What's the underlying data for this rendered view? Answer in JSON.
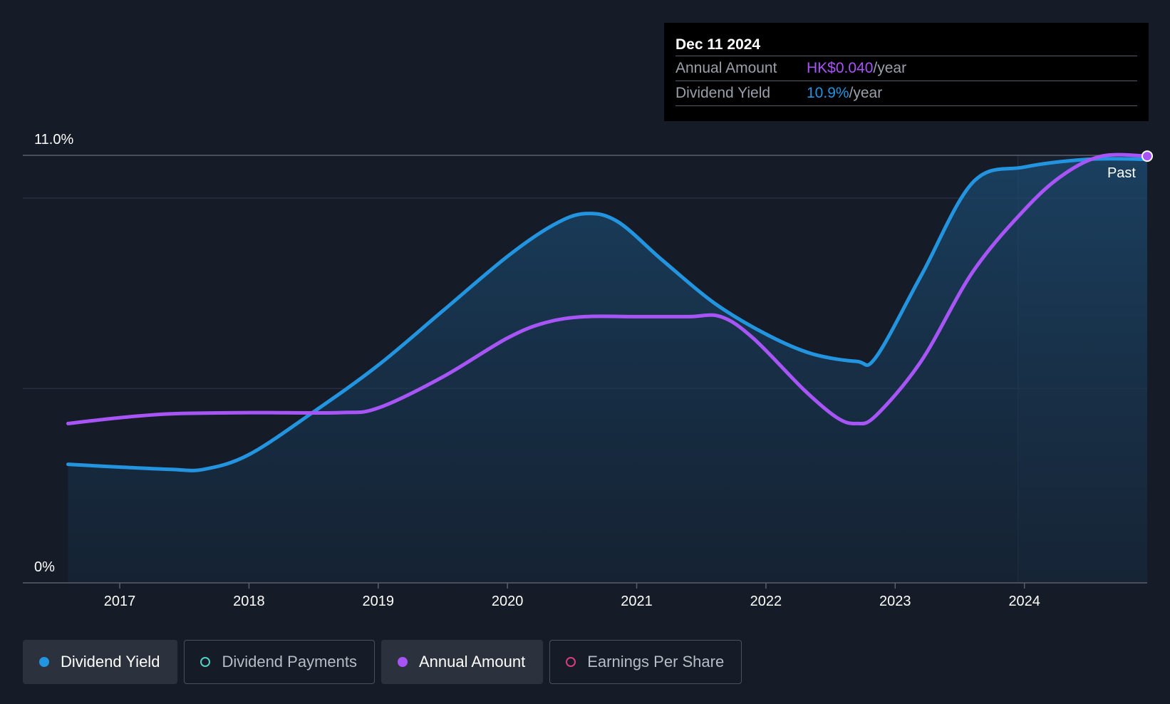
{
  "tooltip": {
    "date": "Dec 11 2024",
    "rows": [
      {
        "label": "Annual Amount",
        "value": "HK$0.040",
        "unit": "/year",
        "color": "#a855f7"
      },
      {
        "label": "Dividend Yield",
        "value": "10.9%",
        "unit": "/year",
        "color": "#2394df"
      }
    ]
  },
  "past_label": "Past",
  "legend": [
    {
      "label": "Dividend Yield",
      "color": "#2394df",
      "active": true
    },
    {
      "label": "Dividend Payments",
      "color": "#4fd1c5",
      "active": false
    },
    {
      "label": "Annual Amount",
      "color": "#a855f7",
      "active": true
    },
    {
      "label": "Earnings Per Share",
      "color": "#d6407a",
      "active": false
    }
  ],
  "chart_data": {
    "type": "line",
    "x_ticks": [
      "2017",
      "2018",
      "2019",
      "2020",
      "2021",
      "2022",
      "2023",
      "2024"
    ],
    "y_ticks": [
      "0%",
      "11.0%"
    ],
    "ylim": [
      0,
      11.0
    ],
    "xlim": [
      2016.25,
      2024.95
    ],
    "past_start": 2023.95,
    "series": [
      {
        "name": "Dividend Yield",
        "color": "#2394df",
        "area": true,
        "points": [
          [
            2016.6,
            3.05
          ],
          [
            2017.0,
            2.98
          ],
          [
            2017.4,
            2.92
          ],
          [
            2017.65,
            2.92
          ],
          [
            2018.0,
            3.3
          ],
          [
            2018.5,
            4.4
          ],
          [
            2019.0,
            5.6
          ],
          [
            2019.5,
            7.0
          ],
          [
            2020.0,
            8.4
          ],
          [
            2020.35,
            9.2
          ],
          [
            2020.6,
            9.5
          ],
          [
            2020.85,
            9.3
          ],
          [
            2021.2,
            8.3
          ],
          [
            2021.6,
            7.2
          ],
          [
            2022.0,
            6.4
          ],
          [
            2022.35,
            5.9
          ],
          [
            2022.7,
            5.7
          ],
          [
            2022.85,
            5.8
          ],
          [
            2023.2,
            7.9
          ],
          [
            2023.6,
            10.3
          ],
          [
            2024.0,
            10.7
          ],
          [
            2024.5,
            10.9
          ],
          [
            2024.95,
            10.9
          ]
        ]
      },
      {
        "name": "Annual Amount",
        "color": "#a855f7",
        "area": false,
        "points": [
          [
            2016.6,
            4.1
          ],
          [
            2017.0,
            4.25
          ],
          [
            2017.4,
            4.35
          ],
          [
            2018.0,
            4.38
          ],
          [
            2018.7,
            4.38
          ],
          [
            2019.0,
            4.5
          ],
          [
            2019.5,
            5.3
          ],
          [
            2020.0,
            6.3
          ],
          [
            2020.3,
            6.7
          ],
          [
            2020.6,
            6.85
          ],
          [
            2021.0,
            6.85
          ],
          [
            2021.4,
            6.85
          ],
          [
            2021.65,
            6.85
          ],
          [
            2021.9,
            6.3
          ],
          [
            2022.3,
            4.95
          ],
          [
            2022.55,
            4.25
          ],
          [
            2022.7,
            4.1
          ],
          [
            2022.85,
            4.3
          ],
          [
            2023.2,
            5.7
          ],
          [
            2023.6,
            8.0
          ],
          [
            2024.0,
            9.6
          ],
          [
            2024.3,
            10.5
          ],
          [
            2024.6,
            10.98
          ],
          [
            2024.95,
            10.98
          ]
        ]
      }
    ]
  }
}
